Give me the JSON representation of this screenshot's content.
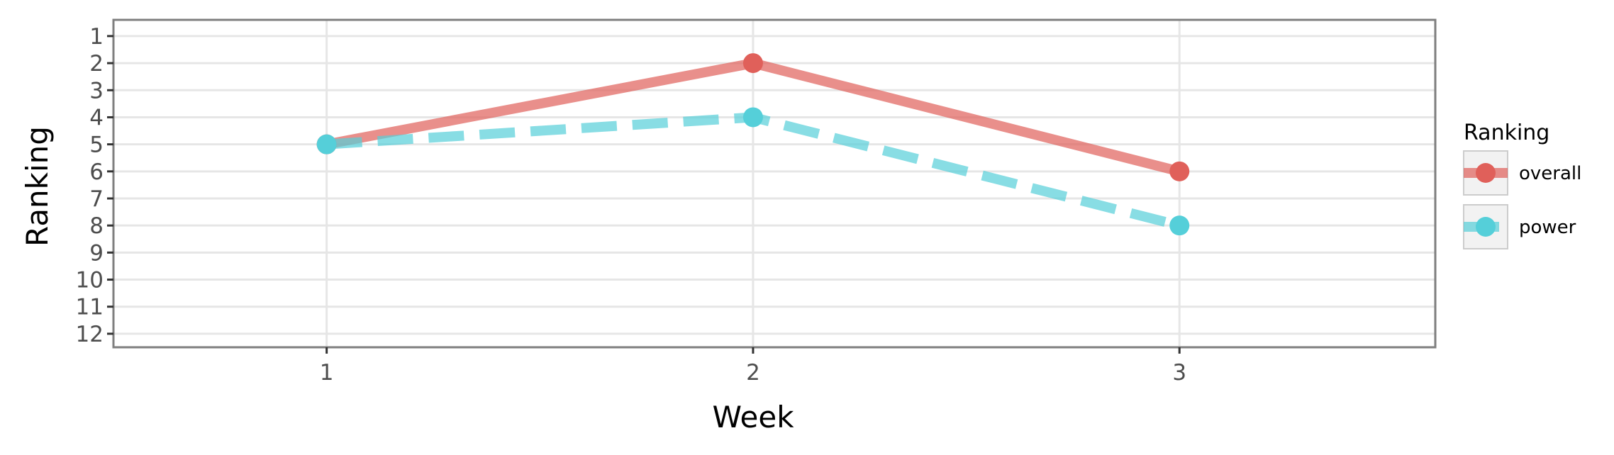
{
  "chart_data": {
    "type": "line",
    "xlabel": "Week",
    "ylabel": "Ranking",
    "x": [
      1,
      2,
      3
    ],
    "xlim": [
      0.5,
      3.6
    ],
    "ylim": [
      12.5,
      0.4
    ],
    "y_reversed": true,
    "x_ticks": [
      "1",
      "2",
      "3"
    ],
    "y_ticks": [
      "1",
      "2",
      "3",
      "4",
      "5",
      "6",
      "7",
      "8",
      "9",
      "10",
      "11",
      "12"
    ],
    "grid": true,
    "legend": {
      "title": "Ranking",
      "position": "right"
    },
    "series": [
      {
        "name": "overall",
        "values": [
          5,
          2,
          6
        ],
        "color": "#e0605a",
        "line": "solid"
      },
      {
        "name": "power",
        "values": [
          5,
          4,
          8
        ],
        "color": "#55cfd9",
        "line": "dashed"
      }
    ]
  }
}
